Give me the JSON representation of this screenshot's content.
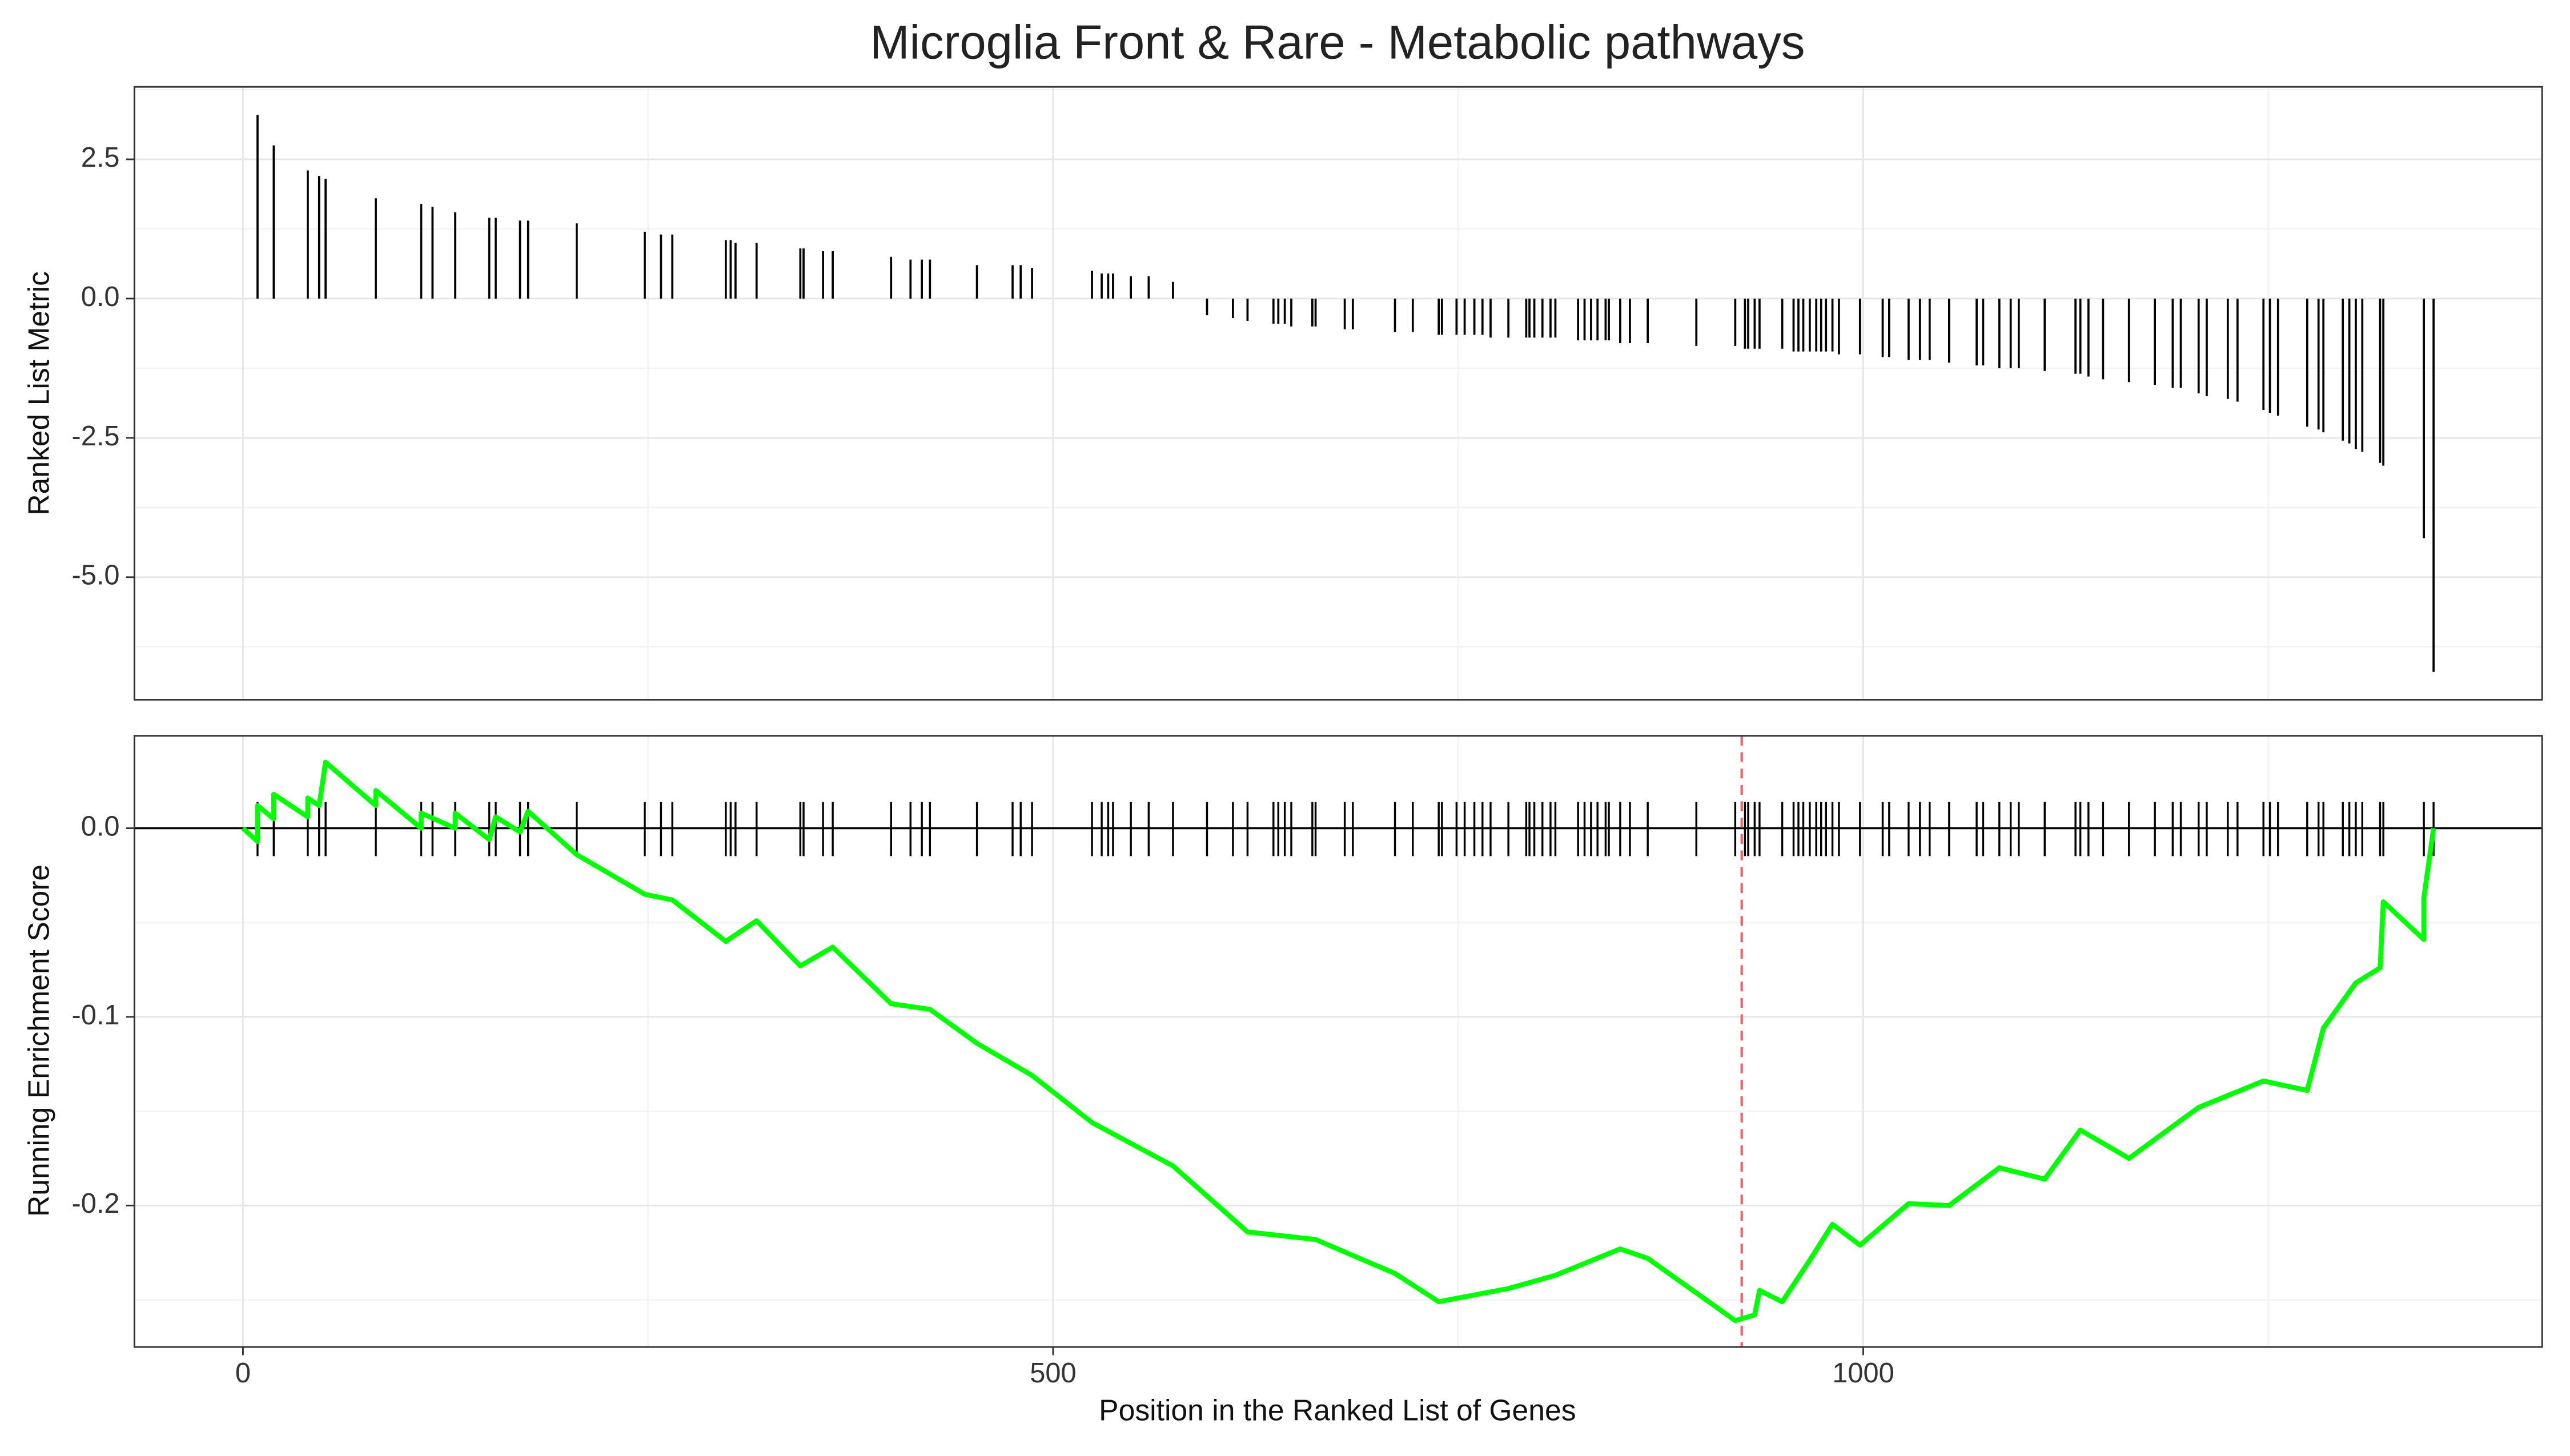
{
  "chart_data": [
    {
      "type": "bar",
      "title": "Microglia Front & Rare - Metabolic pathways",
      "y_label": "Ranked List Metric",
      "color": "#000000",
      "x": [
        9,
        19,
        40,
        47,
        51,
        82,
        110,
        117,
        131,
        152,
        156,
        171,
        176,
        206,
        248,
        258,
        265,
        298,
        301,
        304,
        317,
        344,
        346,
        358,
        364,
        400,
        412,
        419,
        424,
        453,
        475,
        480,
        487,
        524,
        530,
        534,
        537,
        548,
        559,
        574,
        595,
        611,
        620,
        636,
        639,
        643,
        647,
        660,
        662,
        680,
        685,
        711,
        722,
        738,
        740,
        749,
        754,
        760,
        765,
        770,
        781,
        792,
        794,
        797,
        802,
        807,
        810,
        824,
        828,
        832,
        836,
        841,
        843,
        850,
        856,
        867,
        897,
        921,
        927,
        929,
        933,
        936,
        950,
        957,
        960,
        963,
        967,
        971,
        974,
        977,
        981,
        985,
        998,
        1012,
        1016,
        1028,
        1035,
        1041,
        1053,
        1070,
        1074,
        1084,
        1091,
        1096,
        1112,
        1131,
        1134,
        1139,
        1148,
        1164,
        1180,
        1191,
        1196,
        1207,
        1212,
        1225,
        1231,
        1247,
        1251,
        1256,
        1274,
        1281,
        1284,
        1296,
        1300,
        1304,
        1308,
        1319,
        1321,
        1346,
        1352
      ],
      "values": [
        3.3,
        2.75,
        2.3,
        2.2,
        2.15,
        1.8,
        1.7,
        1.65,
        1.55,
        1.45,
        1.45,
        1.4,
        1.4,
        1.35,
        1.2,
        1.15,
        1.15,
        1.05,
        1.05,
        1.0,
        1.0,
        0.9,
        0.9,
        0.85,
        0.85,
        0.75,
        0.7,
        0.7,
        0.7,
        0.6,
        0.6,
        0.6,
        0.55,
        0.5,
        0.45,
        0.45,
        0.45,
        0.4,
        0.4,
        0.3,
        -0.3,
        -0.35,
        -0.4,
        -0.45,
        -0.45,
        -0.45,
        -0.5,
        -0.5,
        -0.5,
        -0.55,
        -0.55,
        -0.6,
        -0.6,
        -0.65,
        -0.65,
        -0.65,
        -0.65,
        -0.65,
        -0.65,
        -0.7,
        -0.7,
        -0.7,
        -0.7,
        -0.7,
        -0.7,
        -0.7,
        -0.7,
        -0.75,
        -0.75,
        -0.75,
        -0.75,
        -0.75,
        -0.75,
        -0.8,
        -0.8,
        -0.8,
        -0.85,
        -0.85,
        -0.9,
        -0.9,
        -0.9,
        -0.9,
        -0.9,
        -0.95,
        -0.95,
        -0.95,
        -0.95,
        -0.95,
        -0.95,
        -0.95,
        -0.95,
        -1.0,
        -1.0,
        -1.05,
        -1.05,
        -1.1,
        -1.1,
        -1.1,
        -1.15,
        -1.2,
        -1.2,
        -1.25,
        -1.25,
        -1.25,
        -1.3,
        -1.35,
        -1.35,
        -1.4,
        -1.45,
        -1.5,
        -1.55,
        -1.6,
        -1.6,
        -1.7,
        -1.75,
        -1.8,
        -1.85,
        -2.0,
        -2.05,
        -2.1,
        -2.3,
        -2.35,
        -2.4,
        -2.55,
        -2.6,
        -2.7,
        -2.75,
        -2.95,
        -3.0,
        -4.3,
        -6.7
      ],
      "xlim": [
        -67,
        1419
      ],
      "ylim": [
        -7.2,
        3.8
      ],
      "xticks": [
        0,
        500,
        1000
      ],
      "yticks": [
        2.5,
        {
          "value": 0,
          "label": "0.0"
        },
        -2.5,
        {
          "value": -5,
          "label": "-5.0"
        }
      ],
      "grid": true
    },
    {
      "type": "line",
      "y_label": "Running Enrichment Score",
      "x_label": "Position in the Ranked List of Genes",
      "color": "#00ff00",
      "x": [
        0,
        9,
        9,
        19,
        19,
        40,
        40,
        47,
        51,
        82,
        82,
        110,
        110,
        131,
        131,
        152,
        156,
        171,
        176,
        206,
        248,
        265,
        298,
        317,
        344,
        364,
        400,
        424,
        453,
        487,
        524,
        574,
        620,
        662,
        711,
        738,
        781,
        810,
        850,
        867,
        921,
        933,
        936,
        950,
        967,
        981,
        998,
        1028,
        1053,
        1084,
        1112,
        1134,
        1164,
        1207,
        1247,
        1274,
        1284,
        1304,
        1319,
        1321,
        1346,
        1346,
        1352
      ],
      "values": [
        0,
        -0.007,
        0.012,
        0.005,
        0.018,
        0.006,
        0.016,
        0.012,
        0.035,
        0.012,
        0.02,
        0.0,
        0.008,
        0.0,
        0.008,
        -0.006,
        0.006,
        -0.002,
        0.009,
        -0.014,
        -0.035,
        -0.038,
        -0.06,
        -0.049,
        -0.073,
        -0.063,
        -0.093,
        -0.096,
        -0.114,
        -0.131,
        -0.156,
        -0.179,
        -0.214,
        -0.218,
        -0.236,
        -0.251,
        -0.244,
        -0.237,
        -0.223,
        -0.228,
        -0.261,
        -0.258,
        -0.245,
        -0.251,
        -0.229,
        -0.21,
        -0.221,
        -0.199,
        -0.2,
        -0.18,
        -0.186,
        -0.16,
        -0.175,
        -0.148,
        -0.134,
        -0.139,
        -0.106,
        -0.082,
        -0.074,
        -0.039,
        -0.059,
        -0.037,
        0
      ],
      "marker_x": 925,
      "marker_color": "#e8696b",
      "xlim": [
        -67,
        1419
      ],
      "ylim": [
        -0.275,
        0.049
      ],
      "xticks": [
        0,
        500,
        1000
      ],
      "yticks": [
        {
          "value": 0,
          "label": "0.0"
        },
        -0.1,
        -0.2
      ],
      "grid": true
    }
  ]
}
